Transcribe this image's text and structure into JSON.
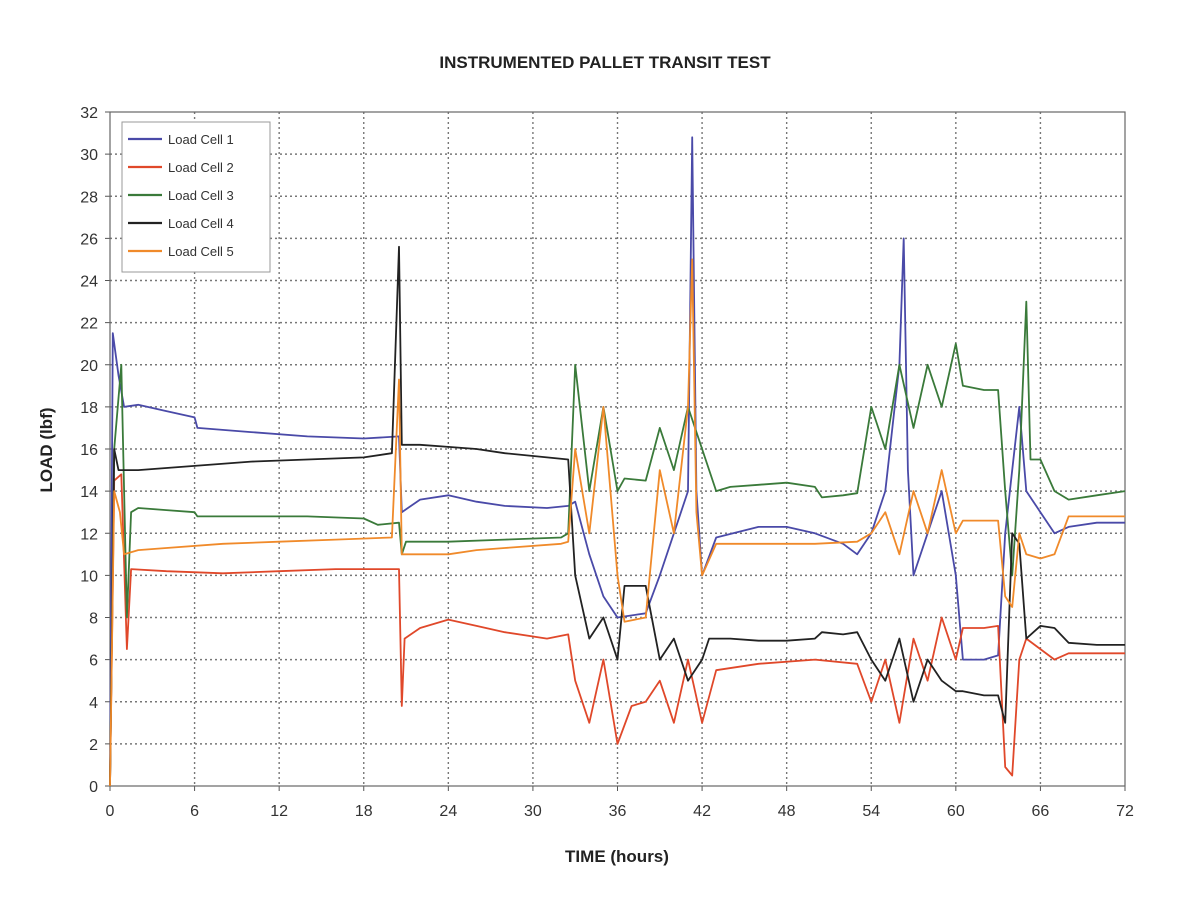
{
  "chart_data": {
    "type": "line",
    "title": "INSTRUMENTED PALLET TRANSIT TEST",
    "xlabel": "TIME (hours)",
    "ylabel": "LOAD (lbf)",
    "xlim": [
      0,
      72
    ],
    "ylim": [
      0,
      32
    ],
    "xticks": [
      0,
      6,
      12,
      18,
      24,
      30,
      36,
      42,
      48,
      54,
      60,
      66,
      72
    ],
    "yticks": [
      0,
      2,
      4,
      6,
      8,
      10,
      12,
      14,
      16,
      18,
      20,
      22,
      24,
      26,
      28,
      30,
      32
    ],
    "grid": true,
    "legend_position": "top-left",
    "series": [
      {
        "name": "Load Cell 1",
        "color": "#4a4aa8",
        "points": [
          [
            0,
            0
          ],
          [
            0.2,
            21.5
          ],
          [
            0.6,
            19.5
          ],
          [
            1,
            18
          ],
          [
            2,
            18.1
          ],
          [
            4,
            17.8
          ],
          [
            6,
            17.5
          ],
          [
            6.2,
            17
          ],
          [
            10,
            16.8
          ],
          [
            14,
            16.6
          ],
          [
            18,
            16.5
          ],
          [
            20.5,
            16.6
          ],
          [
            20.7,
            13
          ],
          [
            22,
            13.6
          ],
          [
            24,
            13.8
          ],
          [
            26,
            13.5
          ],
          [
            28,
            13.3
          ],
          [
            31,
            13.2
          ],
          [
            32.5,
            13.3
          ],
          [
            33,
            13.5
          ],
          [
            34,
            11
          ],
          [
            35,
            9
          ],
          [
            36,
            8
          ],
          [
            38,
            8.2
          ],
          [
            39,
            10
          ],
          [
            40,
            12
          ],
          [
            41,
            14
          ],
          [
            41.3,
            30.8
          ],
          [
            41.6,
            14
          ],
          [
            42,
            10
          ],
          [
            43,
            11.8
          ],
          [
            46,
            12.3
          ],
          [
            48,
            12.3
          ],
          [
            50,
            12
          ],
          [
            52,
            11.5
          ],
          [
            53,
            11
          ],
          [
            54,
            12
          ],
          [
            55,
            14
          ],
          [
            56,
            20
          ],
          [
            56.3,
            26
          ],
          [
            56.6,
            15
          ],
          [
            57,
            10
          ],
          [
            58,
            12
          ],
          [
            59,
            14
          ],
          [
            60,
            10
          ],
          [
            60.5,
            6
          ],
          [
            62,
            6
          ],
          [
            63,
            6.2
          ],
          [
            63.5,
            12
          ],
          [
            64,
            15
          ],
          [
            64.5,
            18
          ],
          [
            65,
            14
          ],
          [
            66,
            13
          ],
          [
            67,
            12
          ],
          [
            68,
            12.3
          ],
          [
            70,
            12.5
          ],
          [
            72,
            12.5
          ]
        ]
      },
      {
        "name": "Load Cell 2",
        "color": "#e0482a",
        "points": [
          [
            0,
            0
          ],
          [
            0.3,
            14.5
          ],
          [
            0.8,
            14.8
          ],
          [
            1.2,
            6.5
          ],
          [
            1.5,
            10.3
          ],
          [
            4,
            10.2
          ],
          [
            8,
            10.1
          ],
          [
            12,
            10.2
          ],
          [
            16,
            10.3
          ],
          [
            20.5,
            10.3
          ],
          [
            20.7,
            3.8
          ],
          [
            20.9,
            7
          ],
          [
            22,
            7.5
          ],
          [
            24,
            7.9
          ],
          [
            26,
            7.6
          ],
          [
            28,
            7.3
          ],
          [
            31,
            7
          ],
          [
            32.5,
            7.2
          ],
          [
            33,
            5
          ],
          [
            34,
            3
          ],
          [
            35,
            6
          ],
          [
            36,
            2
          ],
          [
            37,
            3.8
          ],
          [
            38,
            4
          ],
          [
            39,
            5
          ],
          [
            40,
            3
          ],
          [
            41,
            6
          ],
          [
            42,
            3
          ],
          [
            43,
            5.5
          ],
          [
            46,
            5.8
          ],
          [
            50,
            6
          ],
          [
            53,
            5.8
          ],
          [
            54,
            4
          ],
          [
            55,
            6
          ],
          [
            56,
            3
          ],
          [
            57,
            7
          ],
          [
            58,
            5
          ],
          [
            59,
            8
          ],
          [
            60,
            6
          ],
          [
            60.5,
            7.5
          ],
          [
            62,
            7.5
          ],
          [
            63,
            7.6
          ],
          [
            63.5,
            0.9
          ],
          [
            64,
            0.5
          ],
          [
            64.5,
            6
          ],
          [
            65,
            7
          ],
          [
            66,
            6.5
          ],
          [
            67,
            6
          ],
          [
            68,
            6.3
          ],
          [
            70,
            6.3
          ],
          [
            72,
            6.3
          ]
        ]
      },
      {
        "name": "Load Cell 3",
        "color": "#3a7a3a",
        "points": [
          [
            0,
            0
          ],
          [
            0.3,
            16
          ],
          [
            0.8,
            20
          ],
          [
            1.2,
            8
          ],
          [
            1.5,
            13
          ],
          [
            2,
            13.2
          ],
          [
            4,
            13.1
          ],
          [
            6,
            13
          ],
          [
            6.2,
            12.8
          ],
          [
            10,
            12.8
          ],
          [
            14,
            12.8
          ],
          [
            18,
            12.7
          ],
          [
            19,
            12.4
          ],
          [
            20.5,
            12.5
          ],
          [
            20.7,
            11
          ],
          [
            21,
            11.6
          ],
          [
            24,
            11.6
          ],
          [
            28,
            11.7
          ],
          [
            32,
            11.8
          ],
          [
            32.5,
            12
          ],
          [
            33,
            20
          ],
          [
            34,
            14
          ],
          [
            35,
            18
          ],
          [
            36,
            14
          ],
          [
            36.5,
            14.6
          ],
          [
            38,
            14.5
          ],
          [
            39,
            17
          ],
          [
            40,
            15
          ],
          [
            41,
            18
          ],
          [
            42,
            16
          ],
          [
            43,
            14
          ],
          [
            44,
            14.2
          ],
          [
            46,
            14.3
          ],
          [
            48,
            14.4
          ],
          [
            50,
            14.2
          ],
          [
            50.5,
            13.7
          ],
          [
            52,
            13.8
          ],
          [
            53,
            13.9
          ],
          [
            54,
            18
          ],
          [
            55,
            16
          ],
          [
            56,
            20
          ],
          [
            57,
            17
          ],
          [
            58,
            20
          ],
          [
            59,
            18
          ],
          [
            60,
            21
          ],
          [
            60.5,
            19
          ],
          [
            62,
            18.8
          ],
          [
            63,
            18.8
          ],
          [
            63.5,
            14
          ],
          [
            64,
            10
          ],
          [
            64.5,
            15
          ],
          [
            65,
            23
          ],
          [
            65.3,
            15.5
          ],
          [
            66,
            15.5
          ],
          [
            67,
            14
          ],
          [
            68,
            13.6
          ],
          [
            70,
            13.8
          ],
          [
            72,
            14
          ]
        ]
      },
      {
        "name": "Load Cell 4",
        "color": "#222222",
        "points": [
          [
            0,
            0
          ],
          [
            0.3,
            16
          ],
          [
            0.6,
            15
          ],
          [
            1,
            15
          ],
          [
            2,
            15
          ],
          [
            4,
            15.1
          ],
          [
            6,
            15.2
          ],
          [
            10,
            15.4
          ],
          [
            14,
            15.5
          ],
          [
            18,
            15.6
          ],
          [
            20,
            15.8
          ],
          [
            20.5,
            25.6
          ],
          [
            20.7,
            16.2
          ],
          [
            22,
            16.2
          ],
          [
            24,
            16.1
          ],
          [
            26,
            16
          ],
          [
            28,
            15.8
          ],
          [
            31,
            15.6
          ],
          [
            32.5,
            15.5
          ],
          [
            33,
            10
          ],
          [
            34,
            7
          ],
          [
            35,
            8
          ],
          [
            36,
            6
          ],
          [
            36.5,
            9.5
          ],
          [
            38,
            9.5
          ],
          [
            39,
            6
          ],
          [
            40,
            7
          ],
          [
            41,
            5
          ],
          [
            42,
            6
          ],
          [
            42.5,
            7
          ],
          [
            44,
            7
          ],
          [
            46,
            6.9
          ],
          [
            48,
            6.9
          ],
          [
            50,
            7
          ],
          [
            50.5,
            7.3
          ],
          [
            52,
            7.2
          ],
          [
            53,
            7.3
          ],
          [
            54,
            6
          ],
          [
            55,
            5
          ],
          [
            56,
            7
          ],
          [
            57,
            4
          ],
          [
            58,
            6
          ],
          [
            59,
            5
          ],
          [
            60,
            4.5
          ],
          [
            60.5,
            4.5
          ],
          [
            62,
            4.3
          ],
          [
            63,
            4.3
          ],
          [
            63.5,
            3
          ],
          [
            64,
            12
          ],
          [
            64.5,
            11.5
          ],
          [
            65,
            7
          ],
          [
            66,
            7.6
          ],
          [
            67,
            7.5
          ],
          [
            68,
            6.8
          ],
          [
            70,
            6.7
          ],
          [
            72,
            6.7
          ]
        ]
      },
      {
        "name": "Load Cell 5",
        "color": "#f08a2a",
        "points": [
          [
            0,
            0
          ],
          [
            0.3,
            14
          ],
          [
            0.7,
            13
          ],
          [
            1,
            11
          ],
          [
            2,
            11.2
          ],
          [
            4,
            11.3
          ],
          [
            8,
            11.5
          ],
          [
            12,
            11.6
          ],
          [
            16,
            11.7
          ],
          [
            20,
            11.8
          ],
          [
            20.5,
            19.3
          ],
          [
            20.7,
            11
          ],
          [
            22,
            11
          ],
          [
            24,
            11
          ],
          [
            26,
            11.2
          ],
          [
            28,
            11.3
          ],
          [
            32,
            11.5
          ],
          [
            32.5,
            11.6
          ],
          [
            33,
            16
          ],
          [
            34,
            12
          ],
          [
            35,
            18
          ],
          [
            36,
            10
          ],
          [
            36.5,
            7.8
          ],
          [
            38,
            8
          ],
          [
            39,
            15
          ],
          [
            40,
            12
          ],
          [
            41,
            18
          ],
          [
            41.3,
            25
          ],
          [
            41.6,
            13
          ],
          [
            42,
            10
          ],
          [
            43,
            11.5
          ],
          [
            46,
            11.5
          ],
          [
            50,
            11.5
          ],
          [
            53,
            11.6
          ],
          [
            54,
            12
          ],
          [
            55,
            13
          ],
          [
            56,
            11
          ],
          [
            57,
            14
          ],
          [
            58,
            12
          ],
          [
            59,
            15
          ],
          [
            60,
            12
          ],
          [
            60.5,
            12.6
          ],
          [
            62,
            12.6
          ],
          [
            63,
            12.6
          ],
          [
            63.5,
            9
          ],
          [
            64,
            8.5
          ],
          [
            64.5,
            12
          ],
          [
            65,
            11
          ],
          [
            66,
            10.8
          ],
          [
            67,
            11
          ],
          [
            68,
            12.8
          ],
          [
            70,
            12.8
          ],
          [
            72,
            12.8
          ]
        ]
      }
    ]
  }
}
